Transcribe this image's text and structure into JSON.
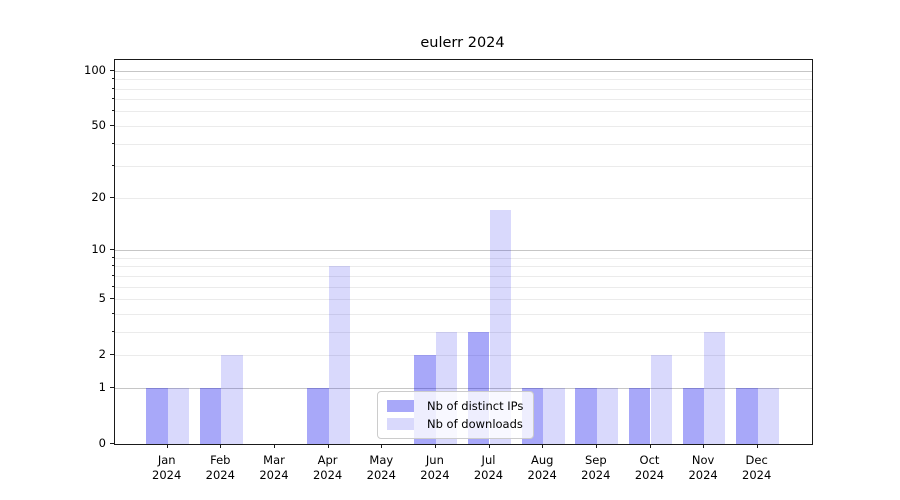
{
  "window": {
    "background": "#ffffff"
  },
  "chart_data": {
    "type": "bar",
    "title": "eulerr 2024",
    "categories": [
      "Jan",
      "Feb",
      "Mar",
      "Apr",
      "May",
      "Jun",
      "Jul",
      "Aug",
      "Sep",
      "Oct",
      "Nov",
      "Dec"
    ],
    "category_year": "2024",
    "series": [
      {
        "name": "Nb of distinct IPs",
        "color": "rgba(0,0,238,0.34)",
        "values": [
          1,
          1,
          0,
          1,
          0,
          2,
          3,
          1,
          1,
          1,
          1,
          1
        ]
      },
      {
        "name": "Nb of downloads",
        "color": "rgba(0,0,238,0.15)",
        "values": [
          1,
          2,
          0,
          8,
          0,
          3,
          17,
          1,
          1,
          2,
          3,
          1
        ]
      }
    ],
    "xlabel": "",
    "ylabel": "",
    "yscale": "log1p",
    "ylim": [
      0,
      114
    ],
    "yticks": [
      0,
      1,
      2,
      5,
      10,
      20,
      50,
      100
    ],
    "major_gridlines": [
      1,
      10,
      100
    ],
    "minor_gridlines": [
      2,
      3,
      4,
      5,
      6,
      7,
      8,
      9,
      20,
      30,
      40,
      50,
      60,
      70,
      80,
      90
    ],
    "grid": "horizontal",
    "legend_position": "inside-bottom-center"
  },
  "colors": {
    "major_grid": "#c6c6c6",
    "minor_grid": "#ebebeb",
    "spine": "#1a1a1a",
    "text": "#000000",
    "legend_border": "#cccccc"
  }
}
